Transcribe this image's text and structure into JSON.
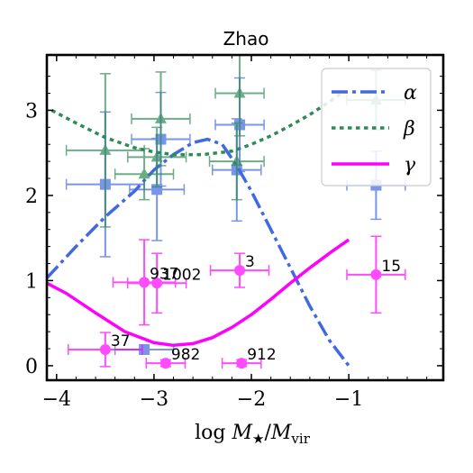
{
  "chart_data": {
    "type": "scatter",
    "title": "Zhao",
    "xlabel": "log M★/Mvir",
    "ylabel": "",
    "xlim": [
      -4.1,
      -0.03
    ],
    "ylim": [
      -0.17,
      3.65
    ],
    "xticks": [
      -4,
      -3,
      -2,
      -1
    ],
    "xtick_labels": [
      "−4",
      "−3",
      "−2",
      "−1"
    ],
    "yticks": [
      0,
      1,
      2,
      3
    ],
    "ytick_labels": [
      "0",
      "1",
      "2",
      "3"
    ],
    "grid": false,
    "legend_position": "top-right",
    "legend": [
      {
        "label": "α",
        "color": "#4169e1",
        "style": "dashdot"
      },
      {
        "label": "β",
        "color": "#2e8b57",
        "style": "dotted"
      },
      {
        "label": "γ",
        "color": "#ff00ff",
        "style": "solid"
      }
    ],
    "curves": [
      {
        "key": "alpha",
        "color": "#4169e1",
        "style": "dashdot",
        "x": [
          -4.1,
          -3.8,
          -3.5,
          -3.2,
          -3.0,
          -2.8,
          -2.6,
          -2.45,
          -2.3,
          -2.15,
          -2.0,
          -1.8,
          -1.6,
          -1.4,
          -1.2,
          -1.0
        ],
        "y": [
          1.03,
          1.4,
          1.75,
          2.05,
          2.3,
          2.48,
          2.62,
          2.66,
          2.6,
          2.35,
          2.05,
          1.6,
          1.15,
          0.7,
          0.3,
          0.0
        ]
      },
      {
        "key": "beta",
        "color": "#2e8b57",
        "style": "dotted",
        "x": [
          -4.05,
          -3.8,
          -3.5,
          -3.2,
          -3.0,
          -2.8,
          -2.5,
          -2.2,
          -2.0,
          -1.8,
          -1.6,
          -1.4,
          -1.2,
          -1.05
        ],
        "y": [
          3.0,
          2.85,
          2.68,
          2.56,
          2.51,
          2.48,
          2.48,
          2.52,
          2.6,
          2.7,
          2.82,
          2.95,
          3.1,
          3.22
        ]
      },
      {
        "key": "gamma",
        "color": "#ff00ff",
        "style": "solid",
        "x": [
          -4.1,
          -3.9,
          -3.6,
          -3.3,
          -3.0,
          -2.8,
          -2.6,
          -2.4,
          -2.2,
          -2.0,
          -1.8,
          -1.6,
          -1.4,
          -1.2,
          -1.0
        ],
        "y": [
          0.97,
          0.85,
          0.62,
          0.4,
          0.27,
          0.24,
          0.26,
          0.33,
          0.45,
          0.6,
          0.78,
          0.97,
          1.15,
          1.32,
          1.48
        ]
      }
    ],
    "series": [
      {
        "key": "alpha_points",
        "marker": "square",
        "color": "#4169e1",
        "points": [
          {
            "x": -3.5,
            "y": 2.13,
            "xerr": 0.4,
            "yerr": 0.85
          },
          {
            "x": -3.1,
            "y": 0.19,
            "xerr": 0.3,
            "yerr": 0.05
          },
          {
            "x": -2.93,
            "y": 2.66,
            "xerr": 0.3,
            "yerr": 0.55
          },
          {
            "x": -2.97,
            "y": 2.07,
            "xerr": 0.28,
            "yerr": 0.6
          },
          {
            "x": -2.12,
            "y": 2.83,
            "xerr": 0.25,
            "yerr": 0.55
          },
          {
            "x": -2.15,
            "y": 2.3,
            "xerr": 0.25,
            "yerr": 0.6
          },
          {
            "x": -0.72,
            "y": 2.12,
            "xerr": 0.3,
            "yerr": 0.4
          }
        ]
      },
      {
        "key": "beta_points",
        "marker": "triangle",
        "color": "#2e8b57",
        "points": [
          {
            "x": -3.5,
            "y": 2.53,
            "xerr": 0.4,
            "yerr": 0.9
          },
          {
            "x": -3.1,
            "y": 2.25,
            "xerr": 0.3,
            "yerr": 0.3
          },
          {
            "x": -2.93,
            "y": 2.9,
            "xerr": 0.3,
            "yerr": 0.55
          },
          {
            "x": -2.97,
            "y": 2.45,
            "xerr": 0.3,
            "yerr": 0.35
          },
          {
            "x": -2.12,
            "y": 3.2,
            "xerr": 0.25,
            "yerr": 0.5
          },
          {
            "x": -2.15,
            "y": 2.4,
            "xerr": 0.28,
            "yerr": 0.45
          },
          {
            "x": -0.72,
            "y": 3.12,
            "xerr": 0.3,
            "yerr": 0.35
          }
        ]
      },
      {
        "key": "gamma_points",
        "marker": "circle",
        "color": "#ff00ff",
        "points": [
          {
            "x": -3.5,
            "y": 0.19,
            "xerr": 0.38,
            "yerr": 0.2,
            "label": "37"
          },
          {
            "x": -3.1,
            "y": 0.98,
            "xerr": 0.32,
            "yerr": 0.5,
            "label": "937"
          },
          {
            "x": -2.97,
            "y": 0.97,
            "xerr": 0.3,
            "yerr": 0.35,
            "label": "1002"
          },
          {
            "x": -2.88,
            "y": 0.03,
            "xerr": 0.2,
            "yerr": 0.04,
            "label": "982"
          },
          {
            "x": -2.12,
            "y": 1.12,
            "xerr": 0.3,
            "yerr": 0.2,
            "label": "3"
          },
          {
            "x": -2.1,
            "y": 0.03,
            "xerr": 0.2,
            "yerr": 0.04,
            "label": "912"
          },
          {
            "x": -0.72,
            "y": 1.07,
            "xerr": 0.3,
            "yerr": 0.45,
            "label": "15"
          }
        ]
      }
    ]
  }
}
